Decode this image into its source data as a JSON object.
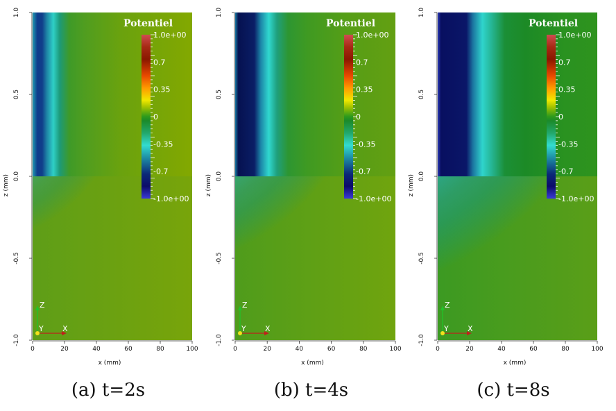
{
  "chart_data": [
    {
      "type": "heatmap",
      "caption": "(a) t=2s",
      "time_s": 2,
      "colorbar": {
        "title": "Potentiel",
        "range": [
          -1.0,
          1.0
        ],
        "ticks": [
          "1.0e+00",
          "0.7",
          "0.35",
          "0",
          "-0.35",
          "-0.7",
          "-1.0e+00"
        ]
      },
      "xlabel": "x (mm)",
      "ylabel": "z (mm)",
      "xlim": [
        0,
        100
      ],
      "ylim": [
        -1.0,
        1.0
      ],
      "xticks": [
        "0",
        "20",
        "40",
        "60",
        "80",
        "100"
      ],
      "yticks": [
        "1.0",
        "0.5",
        "0.0",
        "-0.5",
        "-1.0"
      ],
      "triad": {
        "z": "Z",
        "y": "Y",
        "x": "X"
      }
    },
    {
      "type": "heatmap",
      "caption": "(b) t=4s",
      "time_s": 4,
      "colorbar": {
        "title": "Potentiel",
        "range": [
          -1.0,
          1.0
        ],
        "ticks": [
          "1.0e+00",
          "0.7",
          "0.35",
          "0",
          "-0.35",
          "-0.7",
          "-1.0e+00"
        ]
      },
      "xlabel": "x (mm)",
      "ylabel": "z (mm)",
      "xlim": [
        0,
        100
      ],
      "ylim": [
        -1.0,
        1.0
      ],
      "xticks": [
        "0",
        "20",
        "40",
        "60",
        "80",
        "100"
      ],
      "yticks": [
        "1.0",
        "0.5",
        "0.0",
        "-0.5",
        "-1.0"
      ],
      "triad": {
        "z": "Z",
        "y": "Y",
        "x": "X"
      }
    },
    {
      "type": "heatmap",
      "caption": "(c) t=8s",
      "time_s": 8,
      "colorbar": {
        "title": "Potentiel",
        "range": [
          -1.0,
          1.0
        ],
        "ticks": [
          "1.0e+00",
          "0.7",
          "0.35",
          "0",
          "-0.35",
          "-0.7",
          "-1.0e+00"
        ]
      },
      "xlabel": "x (mm)",
      "ylabel": "z (mm)",
      "xlim": [
        0,
        100
      ],
      "ylim": [
        -1.0,
        1.0
      ],
      "xticks": [
        "0",
        "20",
        "40",
        "60",
        "80",
        "100"
      ],
      "yticks": [
        "1.0",
        "0.5",
        "0.0",
        "-0.5",
        "-1.0"
      ],
      "triad": {
        "z": "Z",
        "y": "Y",
        "x": "X"
      }
    }
  ]
}
